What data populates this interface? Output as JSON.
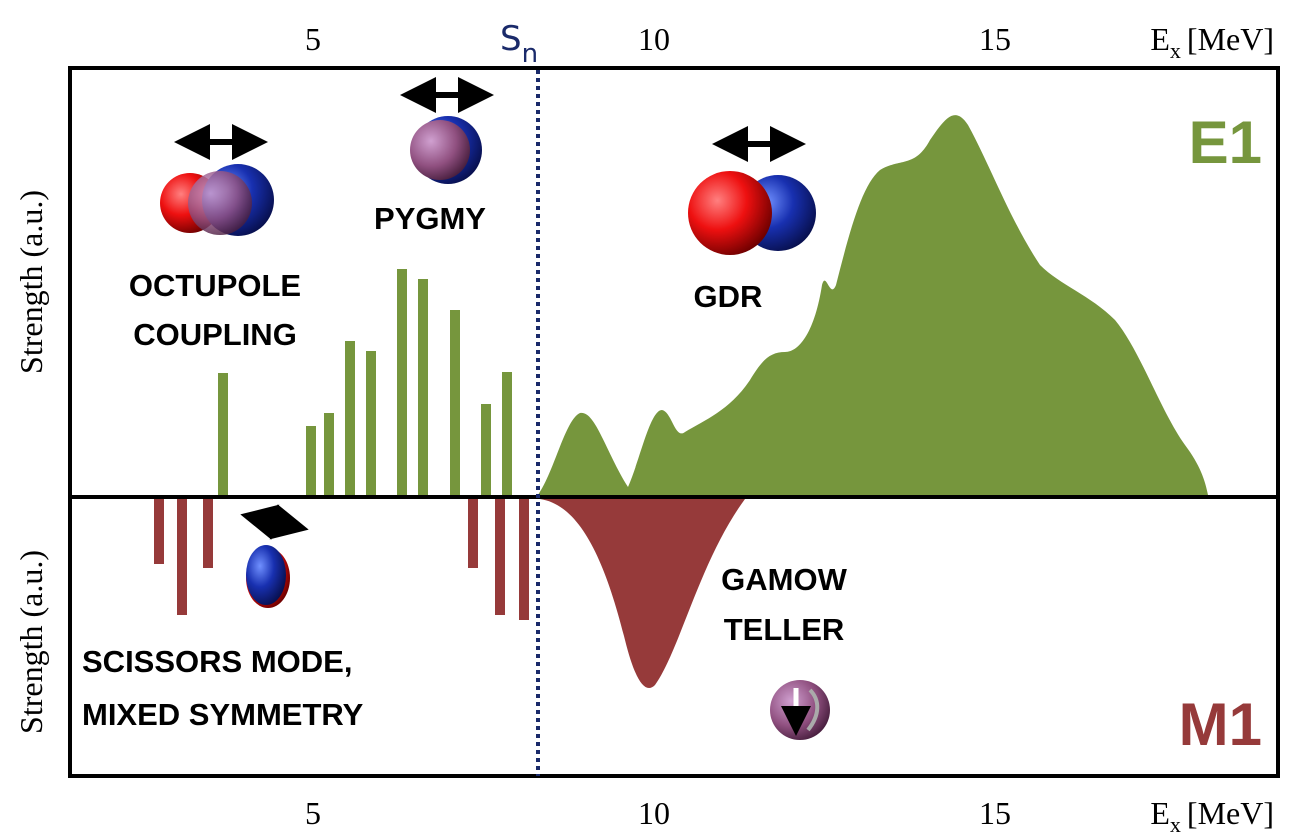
{
  "x_ticks": [
    "5",
    "10",
    "15"
  ],
  "x_axis_label": {
    "symbol": "E",
    "subscript": "x",
    "unit": "[MeV]"
  },
  "threshold": {
    "symbol": "S",
    "subscript": "n"
  },
  "y_axis_labels": [
    "Strength (a.u.)",
    "Strength (a.u.)"
  ],
  "panels": {
    "upper": "E1",
    "lower": "M1"
  },
  "annotations": {
    "octupole": [
      "OCTUPOLE",
      "COUPLING"
    ],
    "pygmy": "PYGMY",
    "gdr": "GDR",
    "gamow_teller": [
      "GAMOW",
      "TELLER"
    ],
    "scissors": [
      "SCISSORS MODE,",
      "MIXED SYMMETRY"
    ]
  }
}
